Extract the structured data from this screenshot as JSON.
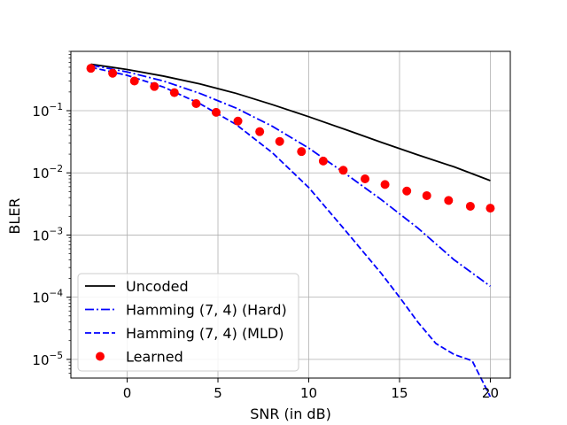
{
  "chart_data": {
    "type": "line",
    "title": "",
    "xlabel": "SNR (in dB)",
    "ylabel": "BLER",
    "xlim": [
      -3.1,
      21.1
    ],
    "ylim": [
      5e-06,
      0.9
    ],
    "yscale": "log",
    "grid": true,
    "legend_position": "lower-left",
    "x_ticks": [
      0,
      5,
      10,
      15,
      20
    ],
    "x_tick_labels": [
      "0",
      "5",
      "10",
      "15",
      "20"
    ],
    "y_ticks": [
      1e-05,
      0.0001,
      0.001,
      0.01,
      0.1
    ],
    "y_tick_labels": [
      {
        "base": "10",
        "exp": "−5"
      },
      {
        "base": "10",
        "exp": "−4"
      },
      {
        "base": "10",
        "exp": "−3"
      },
      {
        "base": "10",
        "exp": "−2"
      },
      {
        "base": "10",
        "exp": "−1"
      }
    ],
    "series": [
      {
        "name": "Uncoded",
        "style": "solid",
        "marker": "none",
        "color": "#000000",
        "x": [
          -2,
          0,
          2,
          4,
          6,
          8,
          10,
          12,
          14,
          16,
          18,
          20
        ],
        "y": [
          0.56,
          0.46,
          0.36,
          0.27,
          0.19,
          0.125,
          0.08,
          0.05,
          0.031,
          0.0195,
          0.0125,
          0.0075
        ]
      },
      {
        "name": "Hamming (7, 4) (Hard)",
        "style": "dashdot",
        "marker": "none",
        "color": "#0000ff",
        "x": [
          -2,
          0,
          2,
          4,
          6,
          8,
          10,
          12,
          14,
          16,
          18,
          20
        ],
        "y": [
          0.54,
          0.42,
          0.3,
          0.19,
          0.11,
          0.056,
          0.025,
          0.0098,
          0.0037,
          0.0013,
          0.0004,
          0.00015
        ]
      },
      {
        "name": "Hamming (7, 4) (MLD)",
        "style": "dashed",
        "marker": "none",
        "color": "#0000ff",
        "x": [
          -2,
          0,
          2,
          4,
          6,
          8,
          10,
          12,
          14,
          15,
          16,
          17,
          18,
          19,
          20
        ],
        "y": [
          0.5,
          0.37,
          0.24,
          0.13,
          0.06,
          0.021,
          0.0058,
          0.0012,
          0.00024,
          0.0001,
          4e-05,
          1.8e-05,
          1.2e-05,
          9.5e-06,
          2.5e-06
        ]
      },
      {
        "name": "Learned",
        "style": "none",
        "marker": "circle",
        "color": "#ff0000",
        "x": [
          -2,
          -0.8,
          0.4,
          1.5,
          2.6,
          3.8,
          4.9,
          6.1,
          7.3,
          8.4,
          9.6,
          10.8,
          11.9,
          13.1,
          14.2,
          15.4,
          16.5,
          17.7,
          18.9,
          20
        ],
        "y": [
          0.48,
          0.4,
          0.3,
          0.245,
          0.195,
          0.13,
          0.094,
          0.068,
          0.046,
          0.032,
          0.022,
          0.0155,
          0.011,
          0.008,
          0.0065,
          0.0051,
          0.0043,
          0.0036,
          0.0029,
          0.0027
        ]
      }
    ]
  }
}
